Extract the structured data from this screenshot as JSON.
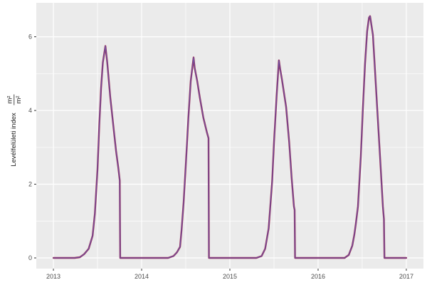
{
  "figure": {
    "background": "#FFFFFF",
    "panel_background": "#EBEBEB",
    "grid_major_color": "#FFFFFF",
    "grid_minor_color": "#FFFFFF",
    "tick_color": "#333333",
    "tick_label_color": "#4D4D4D",
    "axis_title_color": "#1A1A1A"
  },
  "y_axis": {
    "title": "Levélfelületi index",
    "unit_fraction": {
      "numerator": "m²",
      "denominator": "m²"
    },
    "tick_labels": [
      "0",
      "2",
      "4",
      "6"
    ],
    "major_ticks": [
      0,
      2,
      4,
      6
    ],
    "minor_ticks": [
      1,
      3,
      5
    ]
  },
  "x_axis": {
    "tick_labels": [
      "2013",
      "2014",
      "2015",
      "2016",
      "2017"
    ],
    "major_ticks": [
      2013,
      2014,
      2015,
      2016,
      2017
    ],
    "minor_ticks": [
      2013.5,
      2014.5,
      2015.5,
      2016.5
    ]
  },
  "chart_data": {
    "type": "line",
    "title": "",
    "xlabel": "",
    "ylabel": "Levélfelületi index m²/m²",
    "grid": true,
    "legend": "none",
    "xlim": [
      2012.806,
      2017.194
    ],
    "ylim": [
      -0.29,
      6.92
    ],
    "x_major": [
      2013,
      2014,
      2015,
      2016,
      2017
    ],
    "x_minor": [
      2013.5,
      2014.5,
      2015.5,
      2016.5
    ],
    "y_major": [
      0,
      2,
      4,
      6
    ],
    "y_minor": [
      1,
      3,
      5
    ],
    "peaks": [
      {
        "year": 2013.59,
        "value": 5.75
      },
      {
        "year": 2014.59,
        "value": 5.44
      },
      {
        "year": 2015.56,
        "value": 5.36
      },
      {
        "year": 2016.59,
        "value": 6.56
      }
    ],
    "harvest_drops": [
      {
        "year": 2013.76,
        "value_before_drop": 2.1
      },
      {
        "year": 2014.76,
        "value_before_drop": 3.25
      },
      {
        "year": 2015.74,
        "value_before_drop": 1.3
      },
      {
        "year": 2016.75,
        "value_before_drop": 1.05
      }
    ],
    "points": [
      [
        2013.0,
        0
      ],
      [
        2013.24,
        0
      ],
      [
        2013.3,
        0.02
      ],
      [
        2013.347,
        0.1
      ],
      [
        2013.4,
        0.25
      ],
      [
        2013.444,
        0.6
      ],
      [
        2013.47,
        1.2
      ],
      [
        2013.5,
        2.4
      ],
      [
        2013.52,
        3.6
      ],
      [
        2013.54,
        4.6
      ],
      [
        2013.56,
        5.3
      ],
      [
        2013.589,
        5.75
      ],
      [
        2013.61,
        5.3
      ],
      [
        2013.645,
        4.35
      ],
      [
        2013.685,
        3.45
      ],
      [
        2013.71,
        2.9
      ],
      [
        2013.735,
        2.45
      ],
      [
        2013.752,
        2.1
      ],
      [
        2013.757,
        0
      ],
      [
        2014.0,
        0
      ],
      [
        2014.3,
        0
      ],
      [
        2014.36,
        0.05
      ],
      [
        2014.4,
        0.15
      ],
      [
        2014.435,
        0.3
      ],
      [
        2014.452,
        0.75
      ],
      [
        2014.476,
        1.5
      ],
      [
        2014.5,
        2.5
      ],
      [
        2014.53,
        3.8
      ],
      [
        2014.556,
        4.8
      ],
      [
        2014.589,
        5.44
      ],
      [
        2014.601,
        5.16
      ],
      [
        2014.63,
        4.8
      ],
      [
        2014.66,
        4.35
      ],
      [
        2014.7,
        3.8
      ],
      [
        2014.74,
        3.4
      ],
      [
        2014.758,
        3.25
      ],
      [
        2014.763,
        0
      ],
      [
        2015.0,
        0
      ],
      [
        2015.3,
        0
      ],
      [
        2015.36,
        0.05
      ],
      [
        2015.4,
        0.25
      ],
      [
        2015.44,
        0.8
      ],
      [
        2015.48,
        2.1
      ],
      [
        2015.5,
        3.13
      ],
      [
        2015.53,
        4.4
      ],
      [
        2015.556,
        5.36
      ],
      [
        2015.572,
        5.1
      ],
      [
        2015.59,
        4.85
      ],
      [
        2015.637,
        4.1
      ],
      [
        2015.673,
        3.13
      ],
      [
        2015.7,
        2.17
      ],
      [
        2015.726,
        1.4
      ],
      [
        2015.734,
        1.3
      ],
      [
        2015.739,
        0
      ],
      [
        2016.0,
        0
      ],
      [
        2016.3,
        0
      ],
      [
        2016.347,
        0.08
      ],
      [
        2016.387,
        0.33
      ],
      [
        2016.41,
        0.62
      ],
      [
        2016.427,
        0.91
      ],
      [
        2016.452,
        1.4
      ],
      [
        2016.484,
        2.75
      ],
      [
        2016.508,
        4.1
      ],
      [
        2016.532,
        5.26
      ],
      [
        2016.556,
        6.15
      ],
      [
        2016.577,
        6.52
      ],
      [
        2016.589,
        6.56
      ],
      [
        2016.621,
        6.05
      ],
      [
        2016.645,
        5.1
      ],
      [
        2016.669,
        4.1
      ],
      [
        2016.702,
        2.75
      ],
      [
        2016.734,
        1.4
      ],
      [
        2016.746,
        1.05
      ],
      [
        2016.752,
        0
      ],
      [
        2017.0,
        0
      ]
    ],
    "series": [
      {
        "name": "lai-red",
        "color": "#9E2B4F",
        "width": 2.4,
        "points": "shared"
      },
      {
        "name": "lai-purple",
        "color": "#7050A0",
        "width": 1.3,
        "points": "shared"
      }
    ]
  }
}
